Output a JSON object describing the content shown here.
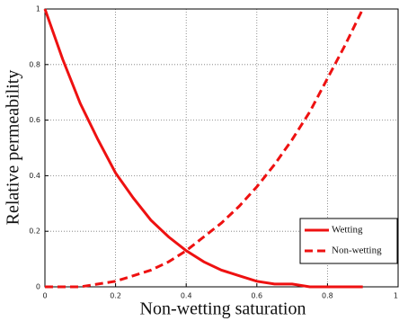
{
  "chart_data": {
    "type": "line",
    "xlabel": "Non-wetting saturation",
    "ylabel": "Relative permeability",
    "x": [
      0,
      0.05,
      0.1,
      0.15,
      0.2,
      0.25,
      0.3,
      0.35,
      0.4,
      0.45,
      0.5,
      0.55,
      0.6,
      0.65,
      0.7,
      0.75,
      0.8,
      0.85,
      0.9
    ],
    "series": [
      {
        "name": "Wetting",
        "color": "#ee1111",
        "linestyle": "solid",
        "values": [
          1,
          0.82,
          0.66,
          0.53,
          0.41,
          0.32,
          0.24,
          0.18,
          0.13,
          0.09,
          0.06,
          0.04,
          0.02,
          0.01,
          0.01,
          0,
          0,
          0,
          0
        ]
      },
      {
        "name": "Non-wetting",
        "color": "#ee1111",
        "linestyle": "dashed",
        "values": [
          0,
          0,
          0,
          0.01,
          0.02,
          0.04,
          0.06,
          0.09,
          0.13,
          0.18,
          0.23,
          0.29,
          0.36,
          0.44,
          0.53,
          0.63,
          0.75,
          0.87,
          1
        ]
      }
    ],
    "xlim": [
      0,
      1
    ],
    "ylim": [
      0,
      1
    ],
    "xticks": [
      0,
      0.2,
      0.4,
      0.6,
      0.8,
      1
    ],
    "yticks": [
      0,
      0.2,
      0.4,
      0.6,
      0.8,
      1
    ],
    "grid": true,
    "legend": "lower right"
  }
}
